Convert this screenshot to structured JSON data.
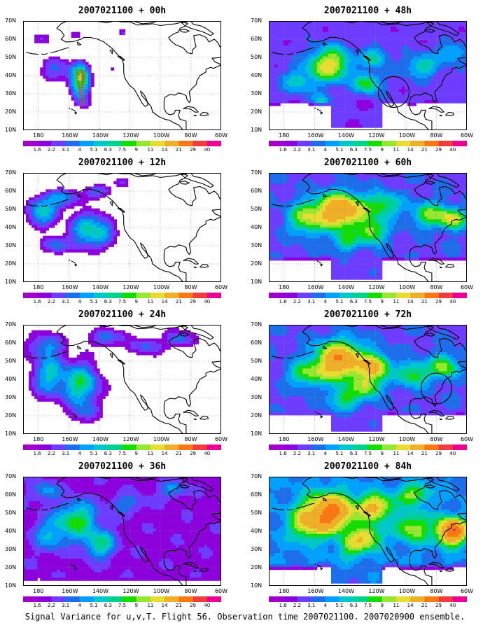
{
  "caption": "Signal Variance for u,v,T. Flight 56. Observation time 2007021100. 2007020900 ensemble.",
  "map": {
    "lon_labels": [
      "180",
      "160W",
      "140W",
      "120W",
      "100W",
      "80W",
      "60W"
    ],
    "lat_labels": [
      "10N",
      "20N",
      "30N",
      "40N",
      "50N",
      "60N",
      "70N"
    ],
    "lon_range": [
      -190,
      -60
    ],
    "lat_range": [
      10,
      70
    ],
    "grid": "dotted"
  },
  "colorbar": {
    "labels": [
      "1.6",
      "2.2",
      "3.1",
      "4",
      "5.1",
      "6.3",
      "7.5",
      "9",
      "11",
      "14",
      "21",
      "29",
      "40"
    ],
    "colors": [
      "#a000c8",
      "#8c00dc",
      "#6e3cff",
      "#1e6eeb",
      "#00a0ff",
      "#00c8c8",
      "#00d28c",
      "#14dc00",
      "#96e632",
      "#e6dc32",
      "#f0af28",
      "#fa7814",
      "#f03c3c",
      "#eb0096"
    ]
  },
  "panels": [
    {
      "title": "2007021100 + 00h",
      "hours": 0,
      "flight_track": true
    },
    {
      "title": "2007021100 + 48h",
      "hours": 48,
      "circle": [
        -108,
        31
      ]
    },
    {
      "title": "2007021100 + 12h",
      "hours": 12
    },
    {
      "title": "2007021100 + 60h",
      "hours": 60
    },
    {
      "title": "2007021100 + 24h",
      "hours": 24
    },
    {
      "title": "2007021100 + 72h",
      "hours": 72,
      "circle": [
        -80,
        35
      ]
    },
    {
      "title": "2007021100 + 36h",
      "hours": 36
    },
    {
      "title": "2007021100 + 84h",
      "hours": 84
    }
  ]
}
